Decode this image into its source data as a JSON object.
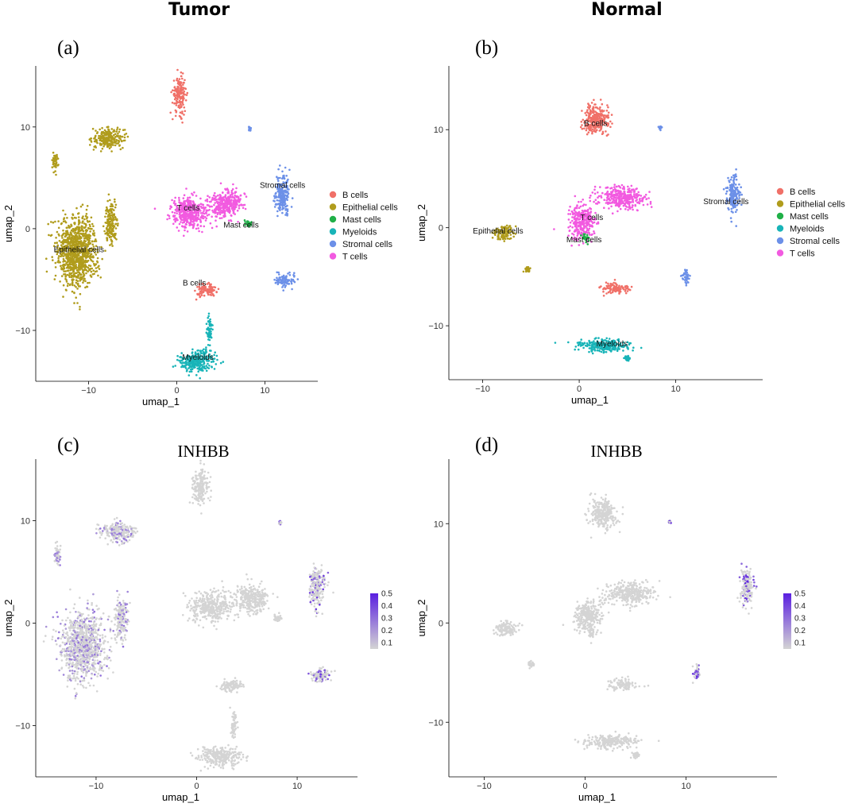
{
  "column_titles": {
    "tumor": "Tumor",
    "normal": "Normal"
  },
  "colors": {
    "B cells": "#f07068",
    "Epithelial cells": "#b09c1c",
    "Mast cells": "#20b048",
    "Myeloids": "#18b4b8",
    "Stromal cells": "#6c90e8",
    "T cells": "#f25ae0",
    "feature_low": "#d4d4d4",
    "feature_high": "#5a1fe0"
  },
  "chart_data": [
    {
      "type": "scatter",
      "panel": "(a)",
      "title": "",
      "xlabel": "umap_1",
      "ylabel": "umap_2",
      "xlim": [
        -16,
        16
      ],
      "ylim": [
        -15,
        16
      ],
      "xticks": [
        -10,
        0,
        10
      ],
      "yticks": [
        -10,
        0,
        10
      ],
      "legend_position": "right",
      "legend": [
        "B cells",
        "Epithelial cells",
        "Mast cells",
        "Myeloids",
        "Stromal cells",
        "T cells"
      ],
      "cluster_labels": [
        {
          "text": "Stromal cells",
          "x": 12,
          "y": 4
        },
        {
          "text": "T cells",
          "x": 1.3,
          "y": 1.8
        },
        {
          "text": "Mast cells",
          "x": 7.3,
          "y": 0.1
        },
        {
          "text": "Epithelial cells",
          "x": -11.1,
          "y": -2.3
        },
        {
          "text": "B cells",
          "x": 2,
          "y": -5.6
        },
        {
          "text": "Myeloids",
          "x": 2.4,
          "y": -12.9
        }
      ],
      "clusters": [
        {
          "cell_type": "B cells",
          "x": 0.3,
          "y": 13.2,
          "sx": 0.7,
          "sy": 1.6
        },
        {
          "cell_type": "B cells",
          "x": 3.4,
          "y": -6.1,
          "sx": 1.1,
          "sy": 0.55
        },
        {
          "cell_type": "Epithelial cells",
          "x": -7.8,
          "y": 8.9,
          "sx": 1.6,
          "sy": 0.9
        },
        {
          "cell_type": "Epithelial cells",
          "x": -13.8,
          "y": 6.6,
          "sx": 0.35,
          "sy": 0.8
        },
        {
          "cell_type": "Epithelial cells",
          "x": -11.3,
          "y": -2.2,
          "sx": 2.0,
          "sy": 3.1
        },
        {
          "cell_type": "Epithelial cells",
          "x": -7.5,
          "y": 0.5,
          "sx": 0.6,
          "sy": 1.8
        },
        {
          "cell_type": "T cells",
          "x": 1.4,
          "y": 1.6,
          "sx": 1.9,
          "sy": 1.3
        },
        {
          "cell_type": "T cells",
          "x": 5.6,
          "y": 2.4,
          "sx": 1.6,
          "sy": 1.2
        },
        {
          "cell_type": "Mast cells",
          "x": 8.1,
          "y": 0.5,
          "sx": 0.35,
          "sy": 0.3
        },
        {
          "cell_type": "Stromal cells",
          "x": 12.0,
          "y": 3.4,
          "sx": 0.7,
          "sy": 1.9
        },
        {
          "cell_type": "Stromal cells",
          "x": 12.3,
          "y": -5.1,
          "sx": 1.0,
          "sy": 0.6
        },
        {
          "cell_type": "Stromal cells",
          "x": 8.3,
          "y": 9.8,
          "sx": 0.1,
          "sy": 0.2
        },
        {
          "cell_type": "Myeloids",
          "x": 2.2,
          "y": -13.0,
          "sx": 1.9,
          "sy": 0.9
        },
        {
          "cell_type": "Myeloids",
          "x": 3.7,
          "y": -10.0,
          "sx": 0.3,
          "sy": 1.2
        }
      ]
    },
    {
      "type": "scatter",
      "panel": "(b)",
      "title": "",
      "xlabel": "umap_1",
      "ylabel": "umap_2",
      "xlim": [
        -13.5,
        19
      ],
      "ylim": [
        -15.5,
        16.5
      ],
      "xticks": [
        -10,
        0,
        10
      ],
      "yticks": [
        -10,
        0,
        10
      ],
      "legend_position": "right",
      "legend": [
        "B cells",
        "Epithelial cells",
        "Mast cells",
        "Myeloids",
        "Stromal cells",
        "T cells"
      ],
      "cluster_labels": [
        {
          "text": "B cells",
          "x": 1.7,
          "y": 10.4
        },
        {
          "text": "Stromal cells",
          "x": 15.2,
          "y": 2.4
        },
        {
          "text": "T cells",
          "x": 1.3,
          "y": 0.8
        },
        {
          "text": "Epithelial cells",
          "x": -8.4,
          "y": -0.6
        },
        {
          "text": "Mast cells",
          "x": 0.5,
          "y": -1.5
        },
        {
          "text": "Myeloids",
          "x": 3.4,
          "y": -12.1
        }
      ],
      "clusters": [
        {
          "cell_type": "B cells",
          "x": 1.8,
          "y": 11.0,
          "sx": 1.2,
          "sy": 1.4
        },
        {
          "cell_type": "B cells",
          "x": 3.7,
          "y": -6.2,
          "sx": 1.3,
          "sy": 0.5
        },
        {
          "cell_type": "Epithelial cells",
          "x": -7.9,
          "y": -0.6,
          "sx": 1.0,
          "sy": 0.7
        },
        {
          "cell_type": "Epithelial cells",
          "x": -5.3,
          "y": -4.2,
          "sx": 0.3,
          "sy": 0.25
        },
        {
          "cell_type": "T cells",
          "x": 0.3,
          "y": 0.6,
          "sx": 1.2,
          "sy": 1.5
        },
        {
          "cell_type": "T cells",
          "x": 4.4,
          "y": 3.0,
          "sx": 2.2,
          "sy": 1.0
        },
        {
          "cell_type": "Mast cells",
          "x": 0.6,
          "y": -1.0,
          "sx": 0.25,
          "sy": 0.45
        },
        {
          "cell_type": "Stromal cells",
          "x": 16.0,
          "y": 3.5,
          "sx": 0.6,
          "sy": 1.8
        },
        {
          "cell_type": "Stromal cells",
          "x": 11.0,
          "y": -5.0,
          "sx": 0.4,
          "sy": 0.7
        },
        {
          "cell_type": "Stromal cells",
          "x": 8.4,
          "y": 10.2,
          "sx": 0.15,
          "sy": 0.15
        },
        {
          "cell_type": "Myeloids",
          "x": 2.5,
          "y": -12.0,
          "sx": 2.6,
          "sy": 0.6
        },
        {
          "cell_type": "Myeloids",
          "x": 5.0,
          "y": -13.3,
          "sx": 0.3,
          "sy": 0.3
        }
      ]
    },
    {
      "type": "scatter",
      "panel": "(c)",
      "title": "INHBB",
      "xlabel": "umap_1",
      "ylabel": "umap_2",
      "xlim": [
        -16,
        16
      ],
      "ylim": [
        -15,
        16
      ],
      "xticks": [
        -10,
        0,
        10
      ],
      "yticks": [
        -10,
        0,
        10
      ],
      "colorbar": {
        "ticks": [
          0.1,
          0.2,
          0.3,
          0.4,
          0.5
        ],
        "min": 0.05,
        "max": 0.5
      },
      "expression": {
        "Epithelial cells": 0.3,
        "Stromal cells": 0.45
      },
      "clusters_from_panel": "(a)"
    },
    {
      "type": "scatter",
      "panel": "(d)",
      "title": "INHBB",
      "xlabel": "umap_1",
      "ylabel": "umap_2",
      "xlim": [
        -13.5,
        19
      ],
      "ylim": [
        -15.5,
        16.5
      ],
      "xticks": [
        -10,
        0,
        10
      ],
      "yticks": [
        -10,
        0,
        10
      ],
      "colorbar": {
        "ticks": [
          0.1,
          0.2,
          0.3,
          0.4,
          0.5
        ],
        "min": 0.05,
        "max": 0.5
      },
      "expression": {
        "Stromal cells": 0.5
      },
      "clusters_from_panel": "(b)"
    }
  ]
}
